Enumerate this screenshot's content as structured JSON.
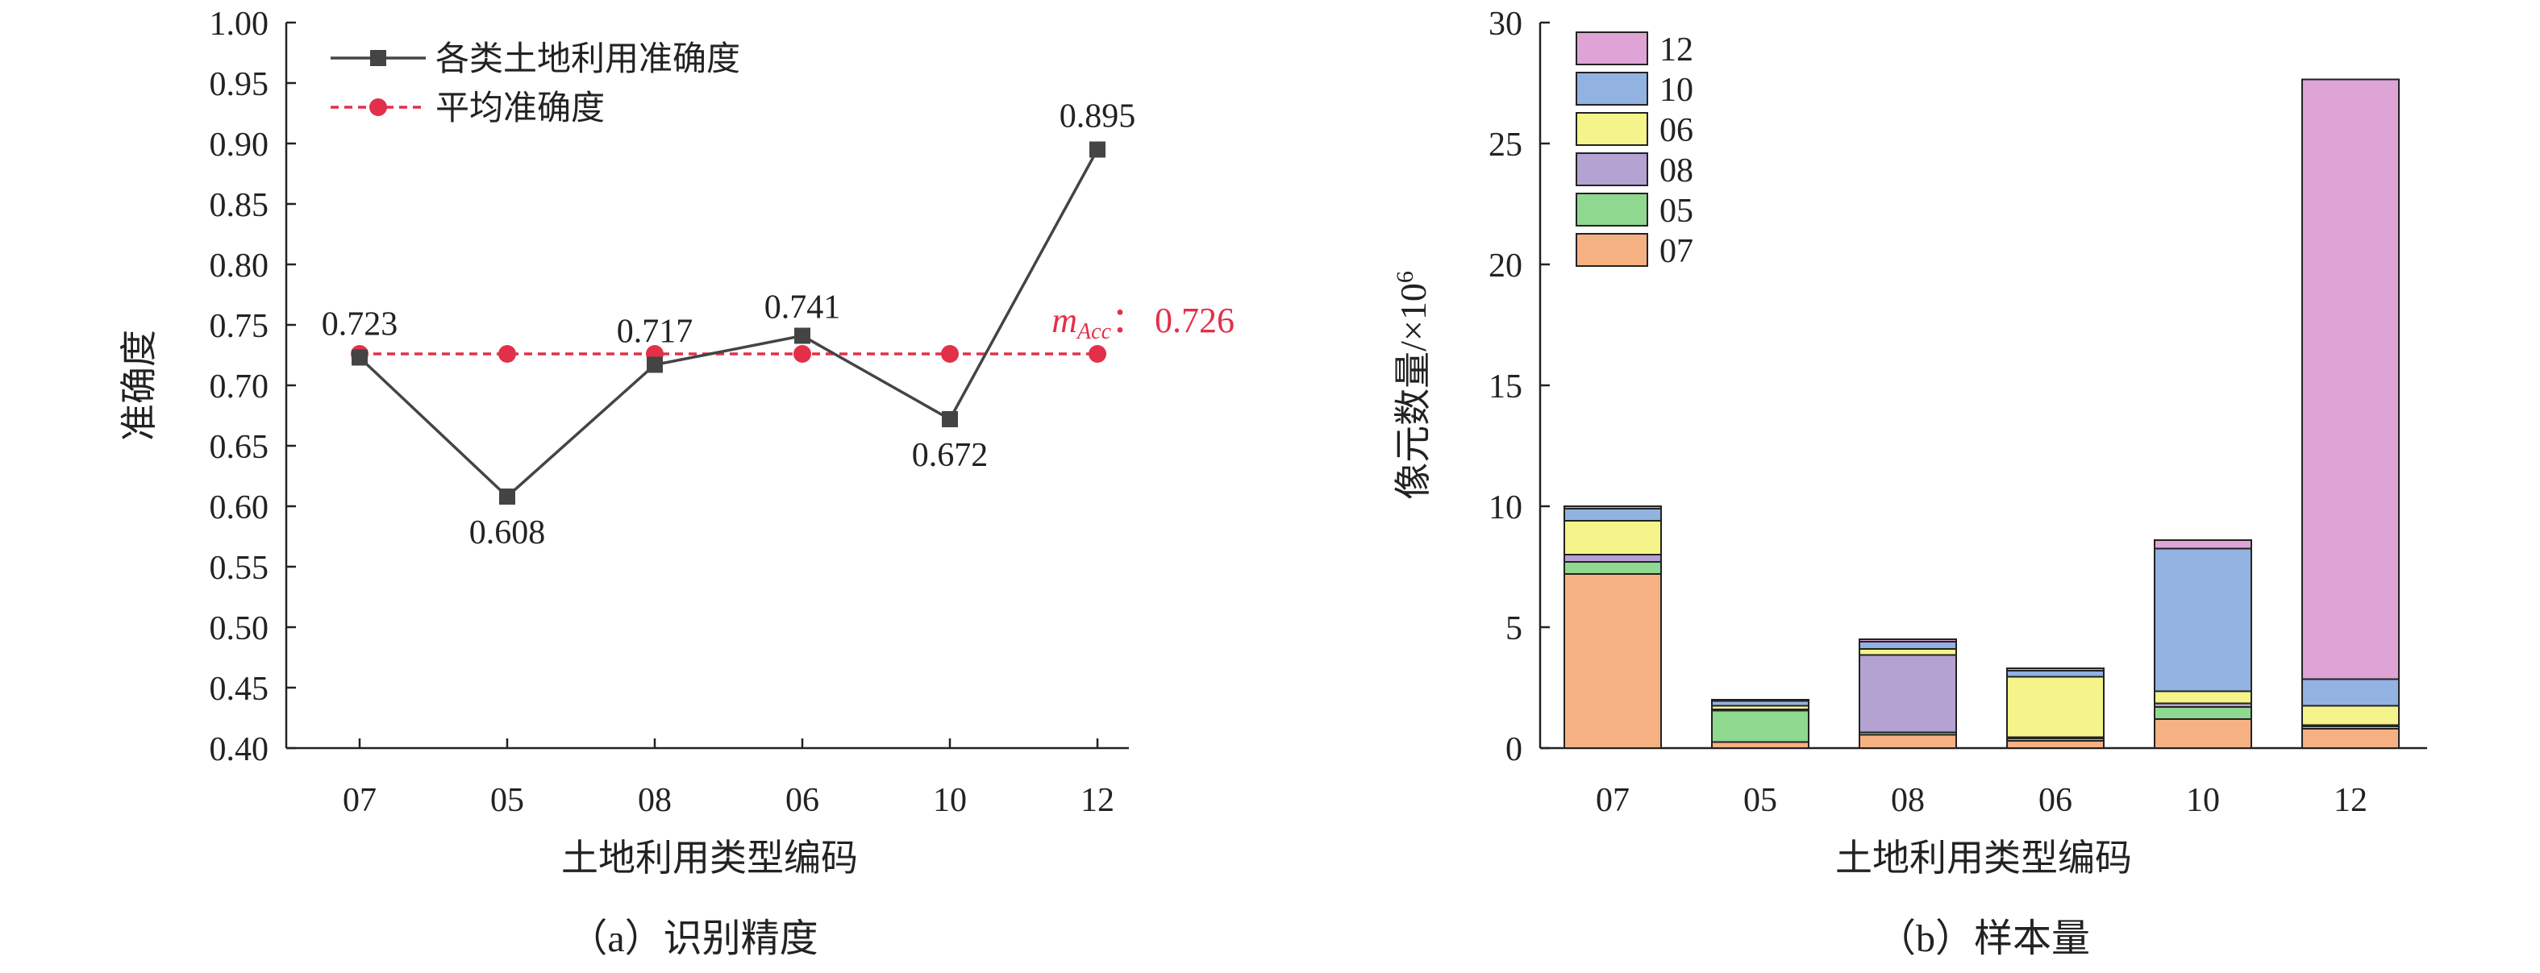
{
  "chart_data": [
    {
      "type": "line",
      "caption": "（a）识别精度",
      "xlabel": "土地利用类型编码",
      "ylabel": "准确度",
      "categories": [
        "07",
        "05",
        "08",
        "06",
        "10",
        "12"
      ],
      "ylim": [
        0.4,
        1.0
      ],
      "yticks": [
        "1.00",
        "0.95",
        "0.90",
        "0.85",
        "0.80",
        "0.75",
        "0.70",
        "0.65",
        "0.60",
        "0.55",
        "0.50",
        "0.45",
        "0.40"
      ],
      "legend_position": "top-left",
      "grid": false,
      "series": [
        {
          "name": "各类土地利用准确度",
          "values": [
            0.723,
            0.608,
            0.717,
            0.741,
            0.672,
            0.895
          ],
          "labels": [
            "0.723",
            "0.608",
            "0.717",
            "0.741",
            "0.672",
            "0.895"
          ],
          "color": "#444444",
          "marker": "square"
        },
        {
          "name": "平均准确度",
          "values": [
            0.726,
            0.726,
            0.726,
            0.726,
            0.726,
            0.726
          ],
          "color": "#e3304a",
          "marker": "circle",
          "line_style": "dashed"
        }
      ],
      "annotation": {
        "symbol": "m",
        "subscript": "Acc",
        "separator": "：",
        "value": "0.726",
        "color": "#e3304a"
      }
    },
    {
      "type": "bar",
      "stacked": true,
      "caption": "（b）样本量",
      "xlabel": "土地利用类型编码",
      "ylabel": "像元数量/×10",
      "ylabel_superscript": "6",
      "categories": [
        "07",
        "05",
        "08",
        "06",
        "10",
        "12"
      ],
      "ylim": [
        0,
        30
      ],
      "yticks": [
        "0",
        "5",
        "10",
        "15",
        "20",
        "25",
        "30"
      ],
      "legend_position": "top-left",
      "grid": false,
      "series": [
        {
          "name": "07",
          "color": "#f6b183",
          "values": [
            7.2,
            0.25,
            0.55,
            0.3,
            1.2,
            0.8
          ]
        },
        {
          "name": "05",
          "color": "#8fd88f",
          "values": [
            0.5,
            1.3,
            0.1,
            0.1,
            0.5,
            0.1
          ]
        },
        {
          "name": "08",
          "color": "#b4a2d2",
          "values": [
            0.3,
            0.05,
            3.2,
            0.05,
            0.15,
            0.05
          ]
        },
        {
          "name": "06",
          "color": "#f4f48a",
          "values": [
            1.4,
            0.15,
            0.25,
            2.5,
            0.5,
            0.8
          ]
        },
        {
          "name": "10",
          "color": "#92b2e2",
          "values": [
            0.5,
            0.2,
            0.3,
            0.25,
            5.9,
            1.1
          ]
        },
        {
          "name": "12",
          "color": "#dea4d6",
          "values": [
            0.1,
            0.05,
            0.1,
            0.1,
            0.35,
            24.8
          ]
        }
      ]
    }
  ]
}
